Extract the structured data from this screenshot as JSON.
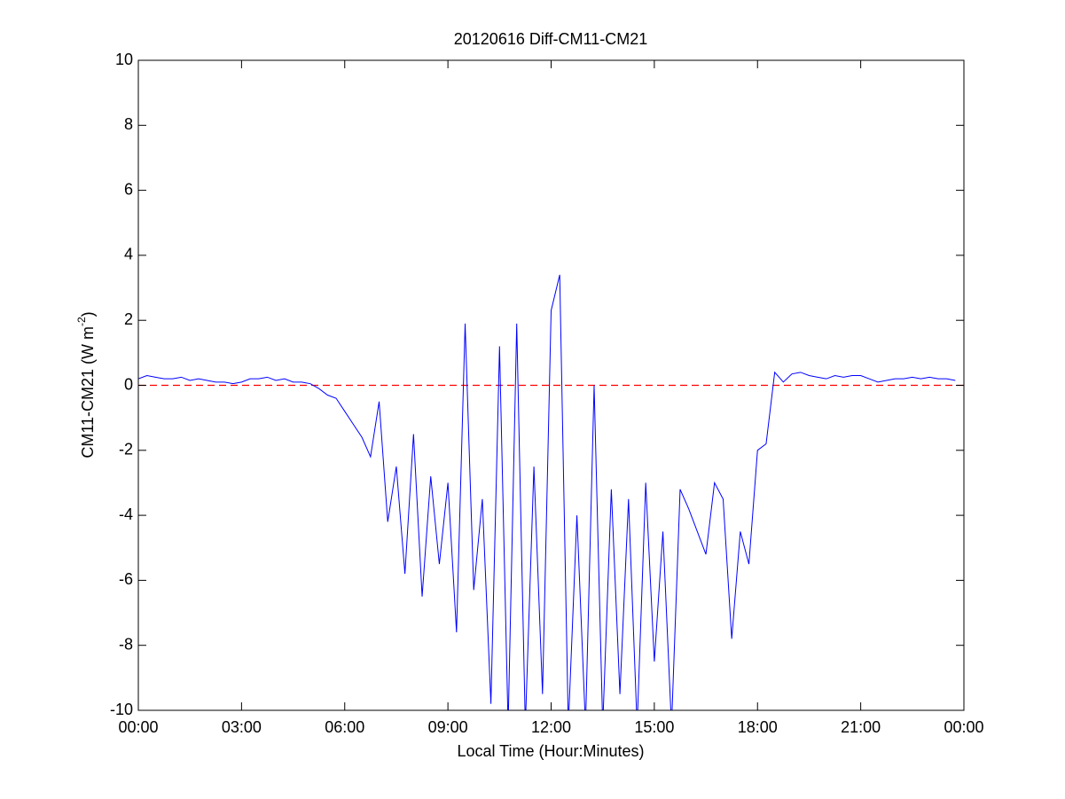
{
  "chart_data": {
    "type": "line",
    "title": "20120616 Diff-CM11-CM21",
    "x_label": "Local Time (Hour:Minutes)",
    "y_label": [
      "CM11-CM21 (W m",
      "-2",
      ")"
    ],
    "xlim": [
      0,
      24
    ],
    "xticks": [
      {
        "value": 0,
        "label": "00:00"
      },
      {
        "value": 3,
        "label": "03:00"
      },
      {
        "value": 6,
        "label": "06:00"
      },
      {
        "value": 9,
        "label": "09:00"
      },
      {
        "value": 12,
        "label": "12:00"
      },
      {
        "value": 15,
        "label": "15:00"
      },
      {
        "value": 18,
        "label": "18:00"
      },
      {
        "value": 21,
        "label": "21:00"
      },
      {
        "value": 24,
        "label": "00:00"
      }
    ],
    "ylim": [
      -10,
      10
    ],
    "yticks": [
      -10,
      -8,
      -6,
      -4,
      -2,
      0,
      2,
      4,
      6,
      8,
      10
    ],
    "reference_line": {
      "value": 0,
      "color": "#ff0000",
      "style": "dashed"
    },
    "x": [
      0,
      0.25,
      0.5,
      0.75,
      1,
      1.25,
      1.5,
      1.75,
      2,
      2.25,
      2.5,
      2.75,
      3,
      3.25,
      3.5,
      3.75,
      4,
      4.25,
      4.5,
      4.75,
      5,
      5.25,
      5.5,
      5.75,
      6,
      6.25,
      6.5,
      6.75,
      7,
      7.25,
      7.5,
      7.75,
      8,
      8.25,
      8.5,
      8.75,
      9,
      9.25,
      9.5,
      9.75,
      10,
      10.25,
      10.5,
      10.75,
      11,
      11.25,
      11.5,
      11.75,
      12,
      12.25,
      12.5,
      12.75,
      13,
      13.25,
      13.5,
      13.75,
      14,
      14.25,
      14.5,
      14.75,
      15,
      15.25,
      15.5,
      15.75,
      16,
      16.25,
      16.5,
      16.75,
      17,
      17.25,
      17.5,
      17.75,
      18,
      18.25,
      18.5,
      18.75,
      19,
      19.25,
      19.5,
      19.75,
      20,
      20.25,
      20.5,
      20.75,
      21,
      21.25,
      21.5,
      21.75,
      22,
      22.25,
      22.5,
      22.75,
      23,
      23.25,
      23.5,
      23.75
    ],
    "series": [
      {
        "name": "CM11-CM21",
        "color": "#0000ff",
        "values": [
          0.2,
          0.3,
          0.25,
          0.2,
          0.2,
          0.25,
          0.15,
          0.2,
          0.15,
          0.1,
          0.1,
          0.05,
          0.1,
          0.2,
          0.2,
          0.25,
          0.15,
          0.2,
          0.1,
          0.1,
          0.05,
          -0.1,
          -0.3,
          -0.4,
          -0.8,
          -1.2,
          -1.6,
          -2.2,
          -0.5,
          -4.2,
          -2.5,
          -5.8,
          -1.5,
          -6.5,
          -2.8,
          -5.5,
          -3.0,
          -7.6,
          1.9,
          -6.3,
          -3.5,
          -9.8,
          1.2,
          -10.5,
          1.9,
          -10.5,
          -2.5,
          -9.5,
          2.3,
          3.4,
          -10.5,
          -4,
          -10.5,
          0.0,
          -10.5,
          -3.2,
          -9.5,
          -3.5,
          -10.5,
          -3.0,
          -8.5,
          -4.5,
          -10.5,
          -3.2,
          -3.8,
          -4.5,
          -5.2,
          -3.0,
          -3.5,
          -7.8,
          -4.5,
          -5.5,
          -2.0,
          -1.8,
          0.4,
          0.1,
          0.35,
          0.4,
          0.3,
          0.25,
          0.2,
          0.3,
          0.25,
          0.3,
          0.3,
          0.2,
          0.1,
          0.15,
          0.2,
          0.2,
          0.25,
          0.2,
          0.25,
          0.2,
          0.2,
          0.15
        ]
      }
    ]
  }
}
